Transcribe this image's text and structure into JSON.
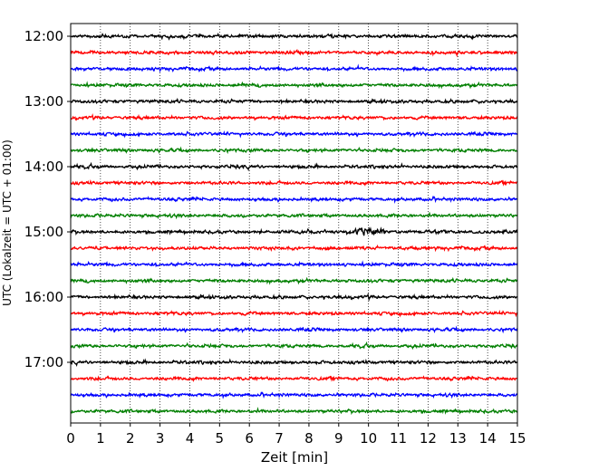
{
  "chart_data": {
    "type": "line",
    "xlabel": "Zeit  [min]",
    "ylabel": "UTC (Lokalzeit = UTC + 01:00)",
    "xlim": [
      0,
      15
    ],
    "x_ticks": [
      "0",
      "1",
      "2",
      "3",
      "4",
      "5",
      "6",
      "7",
      "8",
      "9",
      "10",
      "11",
      "12",
      "13",
      "14",
      "15"
    ],
    "y_ticks": [
      "12:00",
      "13:00",
      "14:00",
      "15:00",
      "16:00",
      "17:00"
    ],
    "grid": "vertical dotted lines at each minute",
    "trace_interval_min": 15,
    "trace_start": "12:00",
    "trace_count": 24,
    "trace_colors": [
      "#000000",
      "#ff0000",
      "#0000ff",
      "#007f00"
    ],
    "annotation": "larger amplitude burst on 15:00 trace around 9.5-10.5 min"
  }
}
